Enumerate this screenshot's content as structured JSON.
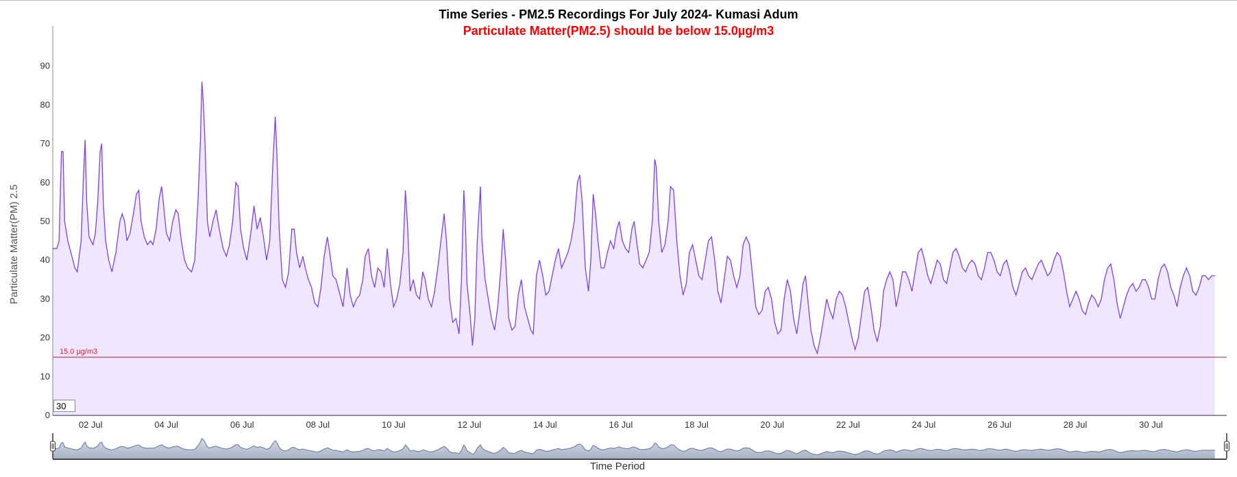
{
  "chart_data": {
    "type": "area",
    "title": "Time Series - PM2.5 Recordings For July 2024- Kumasi Adum",
    "subtitle": "Particulate Matter(PM2.5) should be below 15.0µg/m3",
    "xlabel": "Time Period",
    "ylabel": "Particulate Matter(PM) 2.5",
    "x_unit": "hours since 01 Jul 2024 00:00",
    "xlim": [
      0,
      744
    ],
    "ylim": [
      0,
      100
    ],
    "y_ticks": [
      0,
      10,
      20,
      30,
      40,
      50,
      60,
      70,
      80,
      90
    ],
    "x_tick_labels": [
      {
        "hour": 24,
        "label": "02 Jul"
      },
      {
        "hour": 72,
        "label": "04 Jul"
      },
      {
        "hour": 120,
        "label": "06 Jul"
      },
      {
        "hour": 168,
        "label": "08 Jul"
      },
      {
        "hour": 216,
        "label": "10 Jul"
      },
      {
        "hour": 264,
        "label": "12 Jul"
      },
      {
        "hour": 312,
        "label": "14 Jul"
      },
      {
        "hour": 360,
        "label": "16 Jul"
      },
      {
        "hour": 408,
        "label": "18 Jul"
      },
      {
        "hour": 456,
        "label": "20 Jul"
      },
      {
        "hour": 504,
        "label": "22 Jul"
      },
      {
        "hour": 552,
        "label": "24 Jul"
      },
      {
        "hour": 600,
        "label": "26 Jul"
      },
      {
        "hour": 648,
        "label": "28 Jul"
      },
      {
        "hour": 696,
        "label": "30 Jul"
      }
    ],
    "threshold": {
      "value": 15.0,
      "label": "15.0 µg/m3",
      "color": "#e8192c"
    },
    "grid": false,
    "legend": "none",
    "series_color": "#7b3ff2",
    "fill_color": "#efe7fd",
    "series": {
      "name": "PM2.5",
      "points": [
        [
          0,
          43
        ],
        [
          2.5,
          43
        ],
        [
          4,
          45
        ],
        [
          5.5,
          68
        ],
        [
          6.5,
          68
        ],
        [
          7.5,
          50
        ],
        [
          9.5,
          45
        ],
        [
          11.5,
          42
        ],
        [
          14,
          38
        ],
        [
          15.5,
          37
        ],
        [
          18,
          45
        ],
        [
          19.5,
          62
        ],
        [
          20.5,
          71
        ],
        [
          21.5,
          55
        ],
        [
          23,
          46
        ],
        [
          25.5,
          44
        ],
        [
          27,
          47
        ],
        [
          28.5,
          55
        ],
        [
          30,
          68
        ],
        [
          31,
          70
        ],
        [
          32,
          55
        ],
        [
          33.5,
          45
        ],
        [
          35.5,
          40
        ],
        [
          37.5,
          37
        ],
        [
          40,
          42
        ],
        [
          42.5,
          50
        ],
        [
          44,
          52
        ],
        [
          45.5,
          50
        ],
        [
          47,
          45
        ],
        [
          49,
          47
        ],
        [
          51.5,
          53
        ],
        [
          53,
          57
        ],
        [
          54.5,
          58
        ],
        [
          56,
          50
        ],
        [
          58,
          46
        ],
        [
          60,
          44
        ],
        [
          62,
          45
        ],
        [
          63.5,
          44
        ],
        [
          65.5,
          48
        ],
        [
          67.5,
          56
        ],
        [
          69,
          59
        ],
        [
          70,
          55
        ],
        [
          72,
          47
        ],
        [
          74,
          45
        ],
        [
          76,
          50
        ],
        [
          78,
          53
        ],
        [
          79.5,
          52
        ],
        [
          81.5,
          45
        ],
        [
          83.5,
          40
        ],
        [
          85.5,
          38
        ],
        [
          88,
          37
        ],
        [
          90,
          40
        ],
        [
          92,
          55
        ],
        [
          93.5,
          70
        ],
        [
          94.5,
          86
        ],
        [
          95.5,
          80
        ],
        [
          96.5,
          70
        ],
        [
          98,
          50
        ],
        [
          99.5,
          46
        ],
        [
          101.5,
          50
        ],
        [
          103.5,
          53
        ],
        [
          105.5,
          48
        ],
        [
          108,
          43
        ],
        [
          110,
          41
        ],
        [
          112,
          44
        ],
        [
          114,
          50
        ],
        [
          116,
          60
        ],
        [
          117.5,
          59
        ],
        [
          119,
          48
        ],
        [
          121,
          43
        ],
        [
          123,
          40
        ],
        [
          125.5,
          47
        ],
        [
          127.5,
          54
        ],
        [
          129.5,
          48
        ],
        [
          131.5,
          51
        ],
        [
          133.5,
          46
        ],
        [
          135.5,
          40
        ],
        [
          137.5,
          45
        ],
        [
          139.5,
          65
        ],
        [
          141,
          77
        ],
        [
          142,
          68
        ],
        [
          143.5,
          48
        ],
        [
          145.5,
          35
        ],
        [
          147.5,
          33
        ],
        [
          149.5,
          37
        ],
        [
          151.5,
          48
        ],
        [
          153,
          48
        ],
        [
          154.5,
          42
        ],
        [
          156.5,
          38
        ],
        [
          158.5,
          41
        ],
        [
          160,
          38
        ],
        [
          162,
          35
        ],
        [
          164,
          33
        ],
        [
          166,
          29
        ],
        [
          168,
          28
        ],
        [
          170,
          33
        ],
        [
          172,
          41
        ],
        [
          174,
          46
        ],
        [
          175.5,
          42
        ],
        [
          177.5,
          36
        ],
        [
          179.5,
          35
        ],
        [
          181.5,
          32
        ],
        [
          184,
          28
        ],
        [
          186.5,
          38
        ],
        [
          188.5,
          31
        ],
        [
          190.5,
          28
        ],
        [
          192.5,
          30
        ],
        [
          194.5,
          31
        ],
        [
          196.5,
          35
        ],
        [
          198,
          41
        ],
        [
          200,
          43
        ],
        [
          202,
          36
        ],
        [
          204,
          33
        ],
        [
          206,
          38
        ],
        [
          208,
          37
        ],
        [
          210,
          33
        ],
        [
          212,
          43
        ],
        [
          214,
          34
        ],
        [
          216,
          28
        ],
        [
          218,
          30
        ],
        [
          220,
          34
        ],
        [
          222,
          42
        ],
        [
          223.5,
          58
        ],
        [
          225,
          48
        ],
        [
          226.5,
          32
        ],
        [
          228.5,
          35
        ],
        [
          230.5,
          31
        ],
        [
          232.5,
          30
        ],
        [
          234.5,
          37
        ],
        [
          236,
          35
        ],
        [
          238,
          30
        ],
        [
          240,
          28
        ],
        [
          242,
          32
        ],
        [
          244,
          38
        ],
        [
          246,
          45
        ],
        [
          248,
          52
        ],
        [
          249.5,
          45
        ],
        [
          251.5,
          30
        ],
        [
          253.5,
          24
        ],
        [
          255.5,
          25
        ],
        [
          257.5,
          21
        ],
        [
          259,
          35
        ],
        [
          260.5,
          58
        ],
        [
          261.5,
          50
        ],
        [
          262.5,
          34
        ],
        [
          264.5,
          26
        ],
        [
          266,
          18
        ],
        [
          267.5,
          25
        ],
        [
          269,
          45
        ],
        [
          271,
          59
        ],
        [
          272,
          45
        ],
        [
          274,
          35
        ],
        [
          276,
          30
        ],
        [
          278,
          25
        ],
        [
          280,
          22
        ],
        [
          282,
          28
        ],
        [
          284,
          38
        ],
        [
          285.5,
          48
        ],
        [
          287,
          40
        ],
        [
          289,
          25
        ],
        [
          291,
          22
        ],
        [
          293,
          23
        ],
        [
          295,
          31
        ],
        [
          297,
          35
        ],
        [
          299,
          28
        ],
        [
          301,
          25
        ],
        [
          303,
          22
        ],
        [
          304.5,
          21
        ],
        [
          306.5,
          36
        ],
        [
          308.5,
          40
        ],
        [
          310.5,
          36
        ],
        [
          312.5,
          31
        ],
        [
          314.5,
          32
        ],
        [
          316.5,
          36
        ],
        [
          318.5,
          40
        ],
        [
          320.5,
          43
        ],
        [
          322.5,
          38
        ],
        [
          324.5,
          40
        ],
        [
          326.5,
          42
        ],
        [
          328.5,
          45
        ],
        [
          330.5,
          50
        ],
        [
          332.5,
          60
        ],
        [
          334,
          62
        ],
        [
          335.5,
          55
        ],
        [
          337.5,
          38
        ],
        [
          339.5,
          32
        ],
        [
          341,
          40
        ],
        [
          342.5,
          57
        ],
        [
          344,
          52
        ],
        [
          345.5,
          45
        ],
        [
          347.5,
          38
        ],
        [
          349.5,
          38
        ],
        [
          351.5,
          42
        ],
        [
          353.5,
          45
        ],
        [
          355.5,
          43
        ],
        [
          357.5,
          48
        ],
        [
          359,
          50
        ],
        [
          361,
          45
        ],
        [
          363,
          43
        ],
        [
          365,
          42
        ],
        [
          367,
          48
        ],
        [
          368.5,
          50
        ],
        [
          370,
          45
        ],
        [
          372,
          39
        ],
        [
          374,
          38
        ],
        [
          376,
          40
        ],
        [
          378,
          42
        ],
        [
          380,
          50
        ],
        [
          381.5,
          66
        ],
        [
          382.5,
          64
        ],
        [
          384,
          50
        ],
        [
          386,
          42
        ],
        [
          388,
          44
        ],
        [
          390,
          50
        ],
        [
          391.5,
          59
        ],
        [
          393.5,
          58
        ],
        [
          395.5,
          45
        ],
        [
          397.5,
          36
        ],
        [
          399.5,
          31
        ],
        [
          401.5,
          34
        ],
        [
          403.5,
          42
        ],
        [
          405.5,
          44
        ],
        [
          407.5,
          40
        ],
        [
          409.5,
          36
        ],
        [
          411.5,
          35
        ],
        [
          413.5,
          40
        ],
        [
          415.5,
          45
        ],
        [
          417.5,
          46
        ],
        [
          419.5,
          40
        ],
        [
          421.5,
          32
        ],
        [
          423.5,
          29
        ],
        [
          425.5,
          35
        ],
        [
          427.5,
          41
        ],
        [
          429.5,
          40
        ],
        [
          431.5,
          36
        ],
        [
          433.5,
          33
        ],
        [
          435.5,
          36
        ],
        [
          437.5,
          44
        ],
        [
          439.5,
          46
        ],
        [
          441.5,
          44
        ],
        [
          443.5,
          36
        ],
        [
          445.5,
          28
        ],
        [
          447.5,
          26
        ],
        [
          449.5,
          27
        ],
        [
          451.5,
          32
        ],
        [
          453.5,
          33
        ],
        [
          455.5,
          30
        ],
        [
          457.5,
          24
        ],
        [
          459.5,
          21
        ],
        [
          461.5,
          22
        ],
        [
          463.5,
          30
        ],
        [
          465.5,
          35
        ],
        [
          467.5,
          32
        ],
        [
          469.5,
          25
        ],
        [
          471.5,
          21
        ],
        [
          473.5,
          27
        ],
        [
          475.5,
          34
        ],
        [
          477,
          36
        ],
        [
          478.5,
          30
        ],
        [
          480.5,
          22
        ],
        [
          482.5,
          18
        ],
        [
          484.5,
          16
        ]
      ],
      "regular_block": {
        "start_hour": 486.5,
        "step_hours": 2,
        "values": [
          20,
          25,
          30,
          27,
          25,
          30,
          32,
          31,
          28,
          24,
          20,
          17,
          20,
          26,
          32,
          33,
          28,
          22,
          19,
          23,
          32,
          35,
          37,
          35,
          28,
          32,
          37,
          37,
          35,
          32,
          37,
          42,
          43,
          40,
          36,
          34,
          37,
          40,
          39,
          35,
          34,
          38,
          42,
          43,
          41,
          38,
          37,
          39,
          40,
          39,
          36,
          35,
          38,
          42,
          42,
          40,
          37,
          36,
          39,
          40,
          37,
          33,
          31,
          34,
          37,
          38,
          36,
          35,
          37,
          39,
          40,
          38,
          36,
          37,
          40,
          42,
          41,
          37,
          32,
          28,
          30,
          32,
          30,
          27,
          26,
          29,
          31,
          30,
          28,
          30,
          35,
          38,
          39,
          35,
          29,
          25,
          28,
          31,
          33,
          34,
          32,
          33,
          35,
          35,
          33,
          30,
          30,
          35,
          38,
          39,
          37,
          33,
          31,
          28,
          33,
          36,
          38,
          36,
          32,
          31,
          33,
          36,
          36,
          35,
          36,
          36
        ]
      }
    }
  },
  "range_input": {
    "value": "30"
  }
}
